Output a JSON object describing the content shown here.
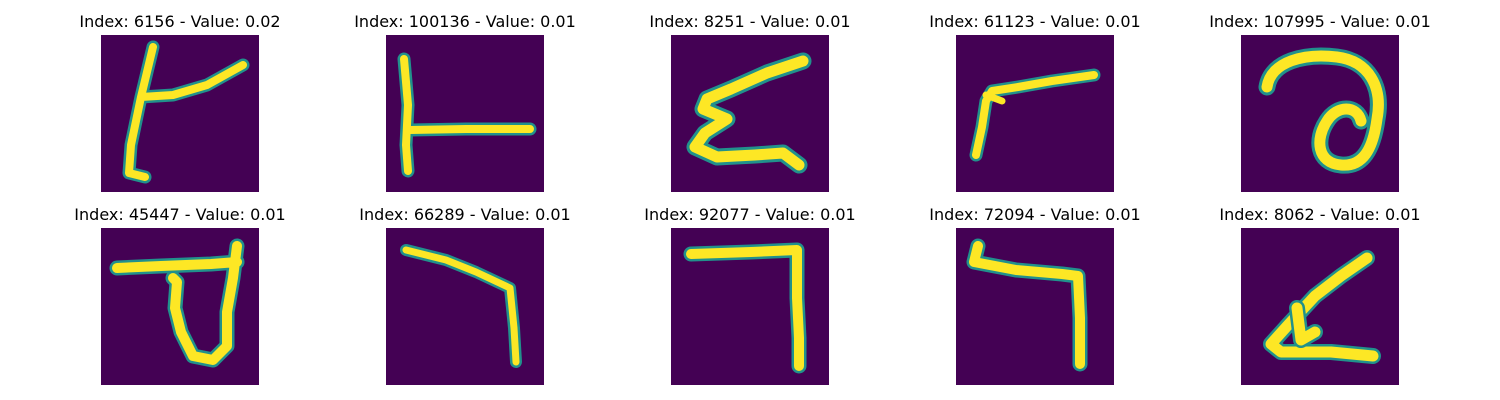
{
  "panels": [
    {
      "title": "Index: 6156 - Value: 0.02",
      "image": "handwritten-glyph"
    },
    {
      "title": "Index: 100136 - Value: 0.01",
      "image": "handwritten-glyph"
    },
    {
      "title": "Index: 8251 - Value: 0.01",
      "image": "handwritten-glyph"
    },
    {
      "title": "Index: 61123 - Value: 0.01",
      "image": "handwritten-glyph"
    },
    {
      "title": "Index: 107995 - Value: 0.01",
      "image": "handwritten-glyph"
    },
    {
      "title": "Index: 45447 - Value: 0.01",
      "image": "handwritten-glyph"
    },
    {
      "title": "Index: 66289 - Value: 0.01",
      "image": "handwritten-glyph"
    },
    {
      "title": "Index: 92077 - Value: 0.01",
      "image": "handwritten-glyph"
    },
    {
      "title": "Index: 72094 - Value: 0.01",
      "image": "handwritten-glyph"
    },
    {
      "title": "Index: 8062 - Value: 0.01",
      "image": "handwritten-glyph"
    }
  ],
  "colors": {
    "background": "#440154",
    "edge": "#21918c",
    "core": "#fde725"
  }
}
